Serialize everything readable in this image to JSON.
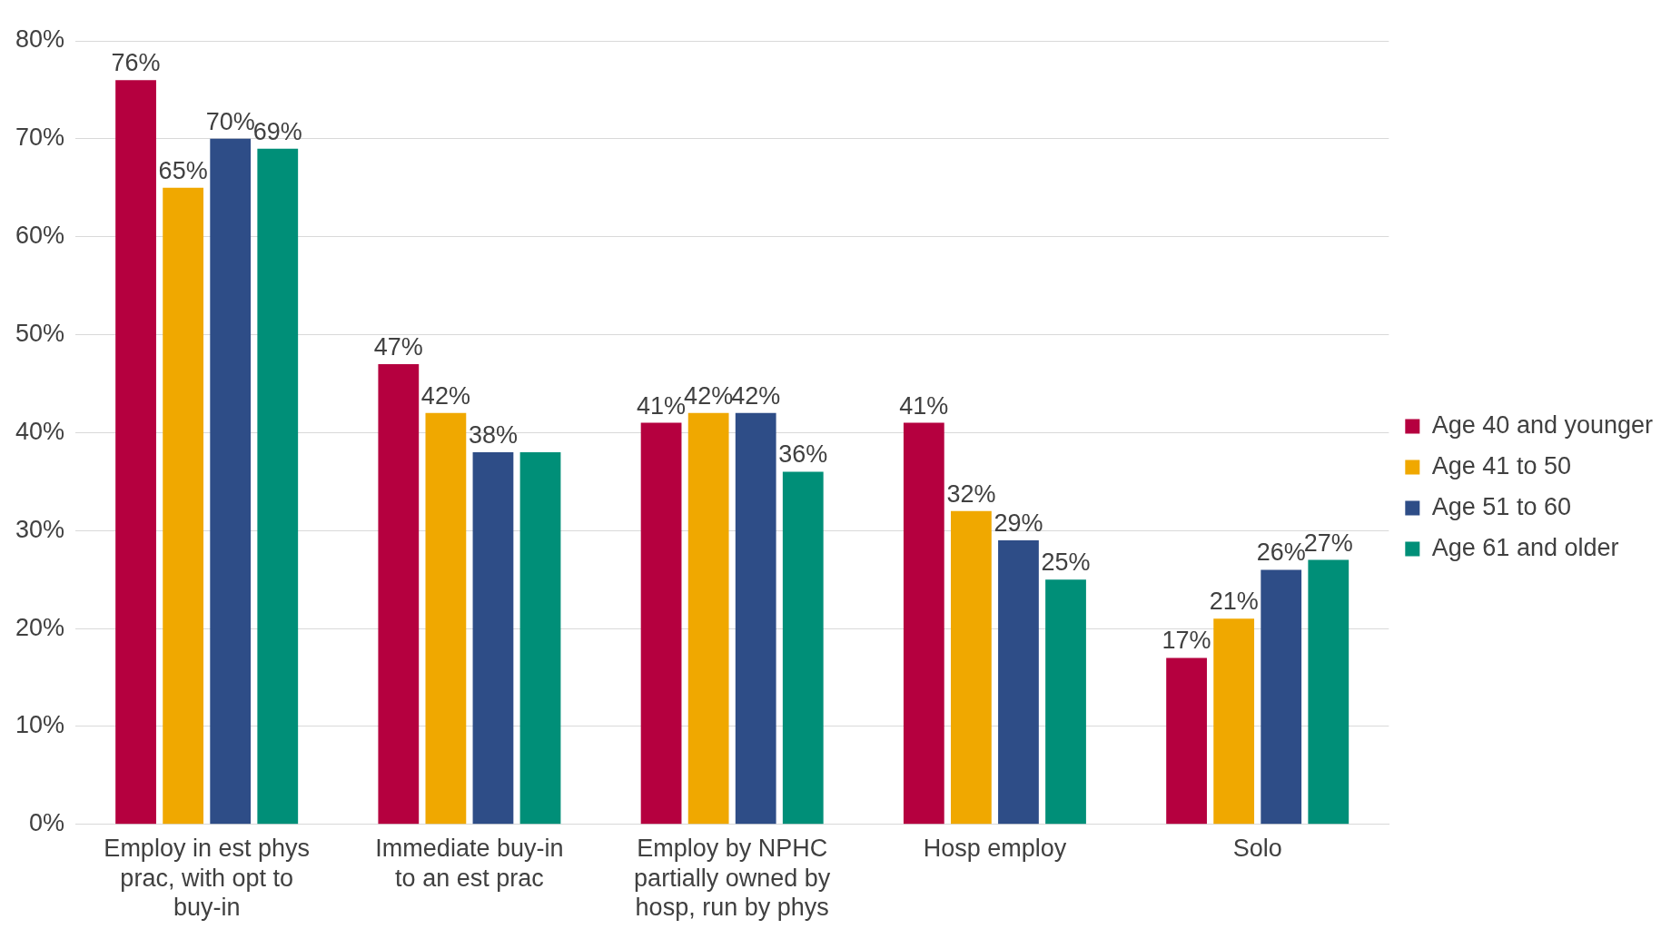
{
  "chart_data": {
    "type": "bar",
    "categories": [
      "Employ in est phys prac, with opt to buy-in",
      "Immediate buy-in to an est prac",
      "Employ by NPHC partially owned by hosp, run by phys",
      "Hosp employ",
      "Solo"
    ],
    "series": [
      {
        "name": "Age 40 and younger",
        "color": "#b5003f",
        "values": [
          76,
          47,
          41,
          41,
          17
        ],
        "value_labels": [
          "76%",
          "47%",
          "41%",
          "41%",
          "17%"
        ]
      },
      {
        "name": "Age 41 to 50",
        "color": "#f0a800",
        "values": [
          65,
          42,
          42,
          32,
          21
        ],
        "value_labels": [
          "65%",
          "42%",
          "42%",
          "32%",
          "21%"
        ]
      },
      {
        "name": "Age 51 to 60",
        "color": "#2e4d87",
        "values": [
          70,
          38,
          42,
          29,
          26
        ],
        "value_labels": [
          "70%",
          "38%",
          "42%",
          "29%",
          "26%"
        ]
      },
      {
        "name": "Age 61 and older",
        "color": "#008f78",
        "values": [
          69,
          38,
          36,
          25,
          27
        ],
        "value_labels": [
          "69%",
          null,
          "36%",
          "25%",
          "27%"
        ]
      }
    ],
    "ylim": [
      0,
      80
    ],
    "yticks": [
      {
        "value": 0,
        "label": "0%"
      },
      {
        "value": 10,
        "label": "10%"
      },
      {
        "value": 20,
        "label": "20%"
      },
      {
        "value": 30,
        "label": "30%"
      },
      {
        "value": 40,
        "label": "40%"
      },
      {
        "value": 50,
        "label": "50%"
      },
      {
        "value": 60,
        "label": "60%"
      },
      {
        "value": 70,
        "label": "70%"
      },
      {
        "value": 80,
        "label": "80%"
      }
    ],
    "grid": "y",
    "legend": "right"
  }
}
